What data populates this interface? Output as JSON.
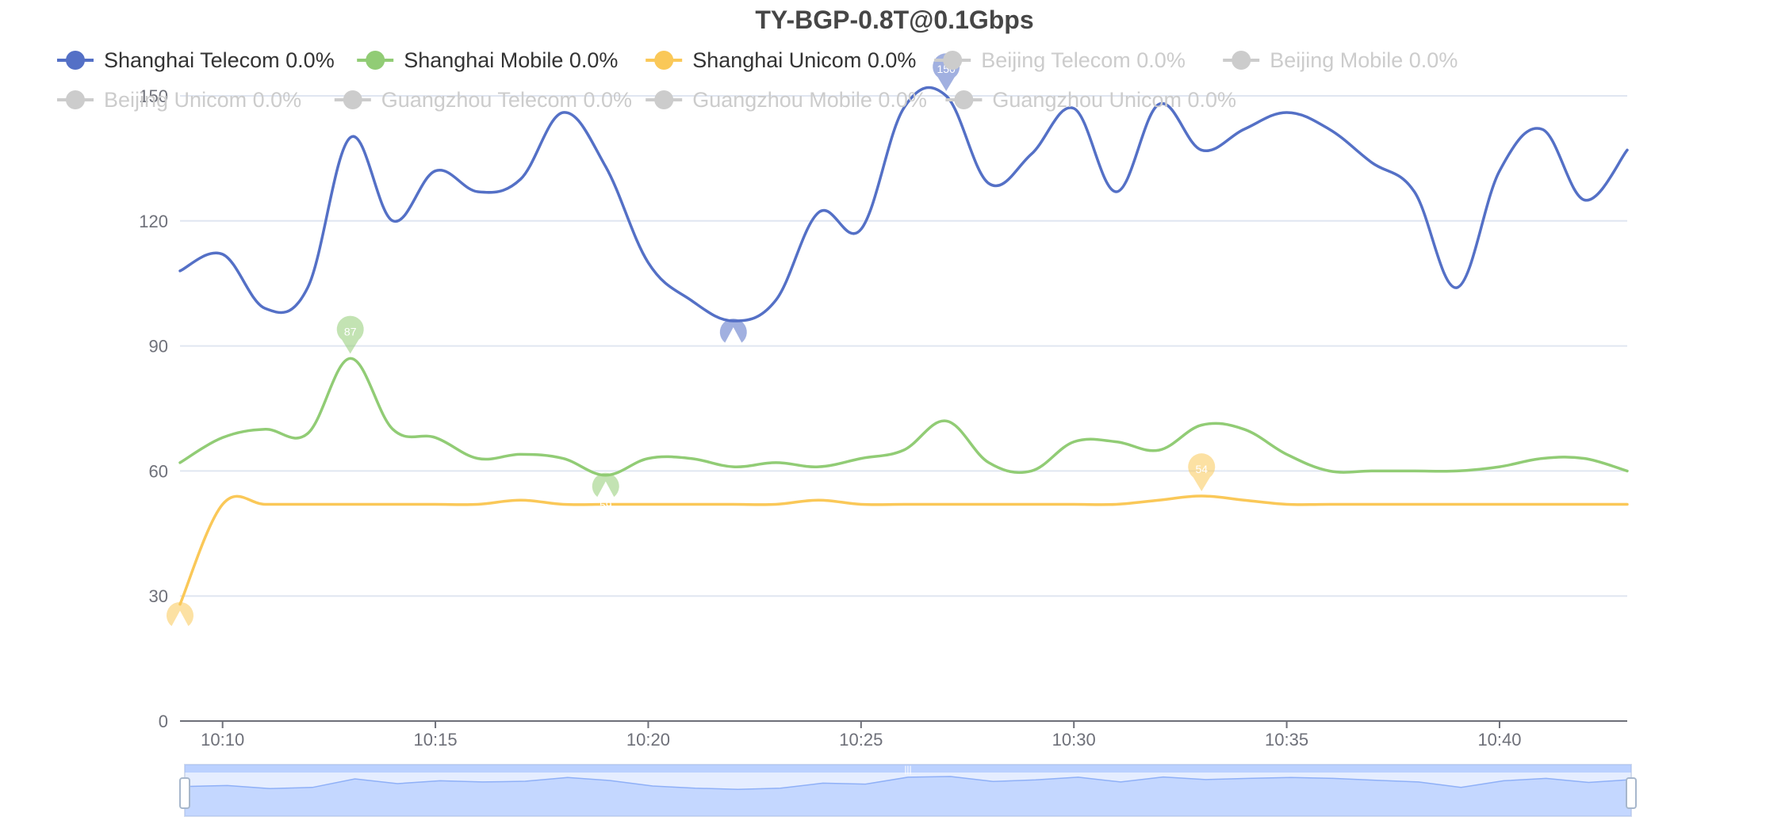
{
  "chart_data": {
    "type": "line",
    "title": "TY-BGP-0.8T@0.1Gbps",
    "ylim": [
      0,
      150
    ],
    "yticks": [
      0,
      30,
      60,
      90,
      120,
      150
    ],
    "x_domain": [
      "10:09",
      "10:43"
    ],
    "xticks": [
      "10:10",
      "10:15",
      "10:20",
      "10:25",
      "10:30",
      "10:35",
      "10:40"
    ],
    "grid": true,
    "legend_position": "top",
    "legend": [
      {
        "label": "Shanghai Telecom 0.0%",
        "color": "#5470c6",
        "active": true
      },
      {
        "label": "Shanghai Mobile 0.0%",
        "color": "#91cc75",
        "active": true
      },
      {
        "label": "Shanghai Unicom 0.0%",
        "color": "#fac858",
        "active": true
      },
      {
        "label": "Beijing Telecom 0.0%",
        "color": "#cccccc",
        "active": false
      },
      {
        "label": "Beijing Mobile 0.0%",
        "color": "#cccccc",
        "active": false
      },
      {
        "label": "Beijing Unicom 0.0%",
        "color": "#cccccc",
        "active": false
      },
      {
        "label": "Guangzhou Telecom 0.0%",
        "color": "#cccccc",
        "active": false
      },
      {
        "label": "Guangzhou Mobile 0.0%",
        "color": "#cccccc",
        "active": false
      },
      {
        "label": "Guangzhou Unicom 0.0%",
        "color": "#cccccc",
        "active": false
      }
    ],
    "series": [
      {
        "color": "#5470c6",
        "points": [
          [
            "10:09",
            108
          ],
          [
            "10:10",
            112
          ],
          [
            "10:11",
            99
          ],
          [
            "10:12",
            104
          ],
          [
            "10:13",
            140
          ],
          [
            "10:14",
            120
          ],
          [
            "10:15",
            132
          ],
          [
            "10:16",
            127
          ],
          [
            "10:17",
            130
          ],
          [
            "10:18",
            146
          ],
          [
            "10:19",
            133
          ],
          [
            "10:20",
            110
          ],
          [
            "10:21",
            101
          ],
          [
            "10:22",
            96
          ],
          [
            "10:23",
            101
          ],
          [
            "10:24",
            122
          ],
          [
            "10:25",
            118
          ],
          [
            "10:26",
            147
          ],
          [
            "10:27",
            150
          ],
          [
            "10:28",
            129
          ],
          [
            "10:29",
            136
          ],
          [
            "10:30",
            147
          ],
          [
            "10:31",
            127
          ],
          [
            "10:32",
            148
          ],
          [
            "10:33",
            137
          ],
          [
            "10:34",
            142
          ],
          [
            "10:35",
            146
          ],
          [
            "10:36",
            142
          ],
          [
            "10:37",
            134
          ],
          [
            "10:38",
            127
          ],
          [
            "10:39",
            104
          ],
          [
            "10:40",
            132
          ],
          [
            "10:41",
            142
          ],
          [
            "10:42",
            125
          ],
          [
            "10:43",
            137
          ]
        ],
        "markers": [
          {
            "label": "150",
            "x": "10:27",
            "y": 150,
            "kind": "max"
          },
          {
            "label": "96",
            "x": "10:22",
            "y": 96,
            "kind": "min"
          }
        ]
      },
      {
        "color": "#91cc75",
        "points": [
          [
            "10:09",
            62
          ],
          [
            "10:10",
            68
          ],
          [
            "10:11",
            70
          ],
          [
            "10:12",
            69
          ],
          [
            "10:13",
            87
          ],
          [
            "10:14",
            70
          ],
          [
            "10:15",
            68
          ],
          [
            "10:16",
            63
          ],
          [
            "10:17",
            64
          ],
          [
            "10:18",
            63
          ],
          [
            "10:19",
            59
          ],
          [
            "10:20",
            63
          ],
          [
            "10:21",
            63
          ],
          [
            "10:22",
            61
          ],
          [
            "10:23",
            62
          ],
          [
            "10:24",
            61
          ],
          [
            "10:25",
            63
          ],
          [
            "10:26",
            65
          ],
          [
            "10:27",
            72
          ],
          [
            "10:28",
            62
          ],
          [
            "10:29",
            60
          ],
          [
            "10:30",
            67
          ],
          [
            "10:31",
            67
          ],
          [
            "10:32",
            65
          ],
          [
            "10:33",
            71
          ],
          [
            "10:34",
            70
          ],
          [
            "10:35",
            64
          ],
          [
            "10:36",
            60
          ],
          [
            "10:37",
            60
          ],
          [
            "10:38",
            60
          ],
          [
            "10:39",
            60
          ],
          [
            "10:40",
            61
          ],
          [
            "10:41",
            63
          ],
          [
            "10:42",
            63
          ],
          [
            "10:43",
            60
          ]
        ],
        "markers": [
          {
            "label": "87",
            "x": "10:13",
            "y": 87,
            "kind": "max"
          },
          {
            "label": "59",
            "x": "10:19",
            "y": 59,
            "kind": "min"
          }
        ]
      },
      {
        "color": "#fac858",
        "points": [
          [
            "10:09",
            28
          ],
          [
            "10:10",
            52
          ],
          [
            "10:11",
            52
          ],
          [
            "10:12",
            52
          ],
          [
            "10:13",
            52
          ],
          [
            "10:14",
            52
          ],
          [
            "10:15",
            52
          ],
          [
            "10:16",
            52
          ],
          [
            "10:17",
            53
          ],
          [
            "10:18",
            52
          ],
          [
            "10:19",
            52
          ],
          [
            "10:20",
            52
          ],
          [
            "10:21",
            52
          ],
          [
            "10:22",
            52
          ],
          [
            "10:23",
            52
          ],
          [
            "10:24",
            53
          ],
          [
            "10:25",
            52
          ],
          [
            "10:26",
            52
          ],
          [
            "10:27",
            52
          ],
          [
            "10:28",
            52
          ],
          [
            "10:29",
            52
          ],
          [
            "10:30",
            52
          ],
          [
            "10:31",
            52
          ],
          [
            "10:32",
            53
          ],
          [
            "10:33",
            54
          ],
          [
            "10:34",
            53
          ],
          [
            "10:35",
            52
          ],
          [
            "10:36",
            52
          ],
          [
            "10:37",
            52
          ],
          [
            "10:38",
            52
          ],
          [
            "10:39",
            52
          ],
          [
            "10:40",
            52
          ],
          [
            "10:41",
            52
          ],
          [
            "10:42",
            52
          ],
          [
            "10:43",
            52
          ]
        ],
        "markers": [
          {
            "label": "54",
            "x": "10:33",
            "y": 54,
            "kind": "max"
          },
          {
            "label": "28",
            "x": "10:09",
            "y": 28,
            "kind": "min"
          }
        ]
      }
    ]
  }
}
